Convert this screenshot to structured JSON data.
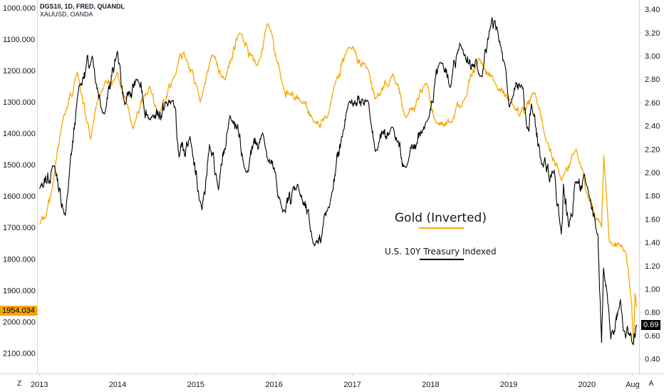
{
  "header": {
    "primary_symbol": "DGS10, 1D, FRED, QUANDL",
    "secondary_symbol": "XAUUSD, OANDA"
  },
  "annotations": {
    "gold_label": "Gold (Inverted)",
    "treasury_label": "U.S. 10Y Treasury Indexed"
  },
  "corners": {
    "left_button": "Z",
    "right_button": "A"
  },
  "badges": {
    "left_price": "1954.034",
    "right_yield": "0.69"
  },
  "colors": {
    "gold": "#f7a600",
    "treasury": "#000000",
    "axis": "#d1d4dc",
    "badge_text_dark": "#131722",
    "badge_text_light": "#ffffff"
  },
  "chart_data": {
    "type": "line",
    "x_type": "date",
    "xlim": [
      "2012-12-21",
      "2020-08-31"
    ],
    "x_ticks": [
      "2013",
      "2014",
      "2015",
      "2016",
      "2017",
      "2018",
      "2019",
      "2020",
      "Aug"
    ],
    "left_axis": {
      "ticks": [
        "1000.000",
        "1100.000",
        "1200.000",
        "1300.000",
        "1400.000",
        "1500.000",
        "1600.000",
        "1700.000",
        "1800.000",
        "1900.000",
        "2000.000",
        "2100.000"
      ],
      "inverted": true,
      "ylim": [
        975,
        2165
      ]
    },
    "right_axis": {
      "ticks": [
        "3.40",
        "3.20",
        "3.00",
        "2.80",
        "2.60",
        "2.40",
        "2.20",
        "2.00",
        "1.80",
        "1.60",
        "1.40",
        "1.20",
        "1.00",
        "0.80",
        "0.60",
        "0.40"
      ],
      "ylim": [
        0.275,
        3.48
      ]
    },
    "series": [
      {
        "name": "XAUUSD",
        "axis": "left",
        "color": "#f7a600",
        "points": [
          [
            "2013-01-02",
            1690
          ],
          [
            "2013-02-01",
            1665
          ],
          [
            "2013-03-01",
            1580
          ],
          [
            "2013-04-15",
            1375
          ],
          [
            "2013-06-27",
            1205
          ],
          [
            "2013-08-28",
            1420
          ],
          [
            "2013-10-15",
            1270
          ],
          [
            "2013-12-31",
            1205
          ],
          [
            "2014-03-14",
            1385
          ],
          [
            "2014-05-30",
            1250
          ],
          [
            "2014-07-10",
            1340
          ],
          [
            "2014-09-30",
            1210
          ],
          [
            "2014-11-06",
            1140
          ],
          [
            "2015-01-22",
            1300
          ],
          [
            "2015-03-17",
            1150
          ],
          [
            "2015-05-18",
            1230
          ],
          [
            "2015-07-24",
            1080
          ],
          [
            "2015-10-15",
            1185
          ],
          [
            "2015-12-03",
            1050
          ],
          [
            "2016-02-11",
            1245
          ],
          [
            "2016-03-10",
            1270
          ],
          [
            "2016-05-02",
            1295
          ],
          [
            "2016-07-06",
            1365
          ],
          [
            "2016-09-06",
            1350
          ],
          [
            "2016-10-07",
            1250
          ],
          [
            "2016-12-15",
            1125
          ],
          [
            "2017-03-14",
            1195
          ],
          [
            "2017-04-17",
            1290
          ],
          [
            "2017-07-10",
            1210
          ],
          [
            "2017-09-08",
            1350
          ],
          [
            "2017-12-12",
            1240
          ],
          [
            "2018-01-25",
            1365
          ],
          [
            "2018-04-11",
            1365
          ],
          [
            "2018-06-01",
            1300
          ],
          [
            "2018-08-16",
            1160
          ],
          [
            "2018-10-26",
            1235
          ],
          [
            "2019-01-31",
            1325
          ],
          [
            "2019-02-20",
            1345
          ],
          [
            "2019-05-02",
            1270
          ],
          [
            "2019-06-25",
            1425
          ],
          [
            "2019-09-04",
            1550
          ],
          [
            "2019-11-12",
            1450
          ],
          [
            "2020-01-08",
            1610
          ],
          [
            "2020-03-09",
            1700
          ],
          [
            "2020-03-19",
            1470
          ],
          [
            "2020-04-14",
            1745
          ],
          [
            "2020-06-30",
            1780
          ],
          [
            "2020-07-27",
            1940
          ],
          [
            "2020-08-06",
            2070
          ],
          [
            "2020-08-12",
            1910
          ],
          [
            "2020-08-21",
            1954
          ]
        ]
      },
      {
        "name": "DGS10",
        "axis": "right",
        "color": "#000000",
        "points": [
          [
            "2013-01-02",
            1.86
          ],
          [
            "2013-03-11",
            2.06
          ],
          [
            "2013-05-02",
            1.63
          ],
          [
            "2013-07-05",
            2.74
          ],
          [
            "2013-09-05",
            3.0
          ],
          [
            "2013-10-30",
            2.5
          ],
          [
            "2013-12-31",
            3.04
          ],
          [
            "2014-02-03",
            2.58
          ],
          [
            "2014-04-04",
            2.8
          ],
          [
            "2014-06-02",
            2.45
          ],
          [
            "2014-09-17",
            2.62
          ],
          [
            "2014-10-15",
            2.13
          ],
          [
            "2014-12-05",
            2.31
          ],
          [
            "2015-01-30",
            1.68
          ],
          [
            "2015-03-06",
            2.24
          ],
          [
            "2015-04-17",
            1.85
          ],
          [
            "2015-06-10",
            2.49
          ],
          [
            "2015-08-24",
            2.0
          ],
          [
            "2015-11-09",
            2.34
          ],
          [
            "2016-02-11",
            1.66
          ],
          [
            "2016-04-21",
            1.9
          ],
          [
            "2016-07-08",
            1.37
          ],
          [
            "2016-09-15",
            1.7
          ],
          [
            "2016-12-15",
            2.6
          ],
          [
            "2017-03-13",
            2.62
          ],
          [
            "2017-04-18",
            2.18
          ],
          [
            "2017-07-06",
            2.39
          ],
          [
            "2017-09-07",
            2.04
          ],
          [
            "2017-12-18",
            2.45
          ],
          [
            "2018-02-21",
            2.94
          ],
          [
            "2018-04-03",
            2.73
          ],
          [
            "2018-05-17",
            3.11
          ],
          [
            "2018-08-29",
            2.82
          ],
          [
            "2018-10-08",
            3.25
          ],
          [
            "2018-11-08",
            3.24
          ],
          [
            "2019-01-03",
            2.56
          ],
          [
            "2019-03-01",
            2.75
          ],
          [
            "2019-03-27",
            2.38
          ],
          [
            "2019-04-17",
            2.59
          ],
          [
            "2019-06-03",
            2.07
          ],
          [
            "2019-08-01",
            2.02
          ],
          [
            "2019-09-03",
            1.47
          ],
          [
            "2019-09-13",
            1.9
          ],
          [
            "2019-10-08",
            1.53
          ],
          [
            "2019-11-07",
            1.92
          ],
          [
            "2020-01-02",
            1.88
          ],
          [
            "2020-02-21",
            1.47
          ],
          [
            "2020-03-09",
            0.54
          ],
          [
            "2020-03-18",
            1.18
          ],
          [
            "2020-04-21",
            0.57
          ],
          [
            "2020-06-05",
            0.91
          ],
          [
            "2020-06-25",
            0.64
          ],
          [
            "2020-07-15",
            0.62
          ],
          [
            "2020-08-04",
            0.52
          ],
          [
            "2020-08-21",
            0.69
          ]
        ]
      }
    ]
  }
}
